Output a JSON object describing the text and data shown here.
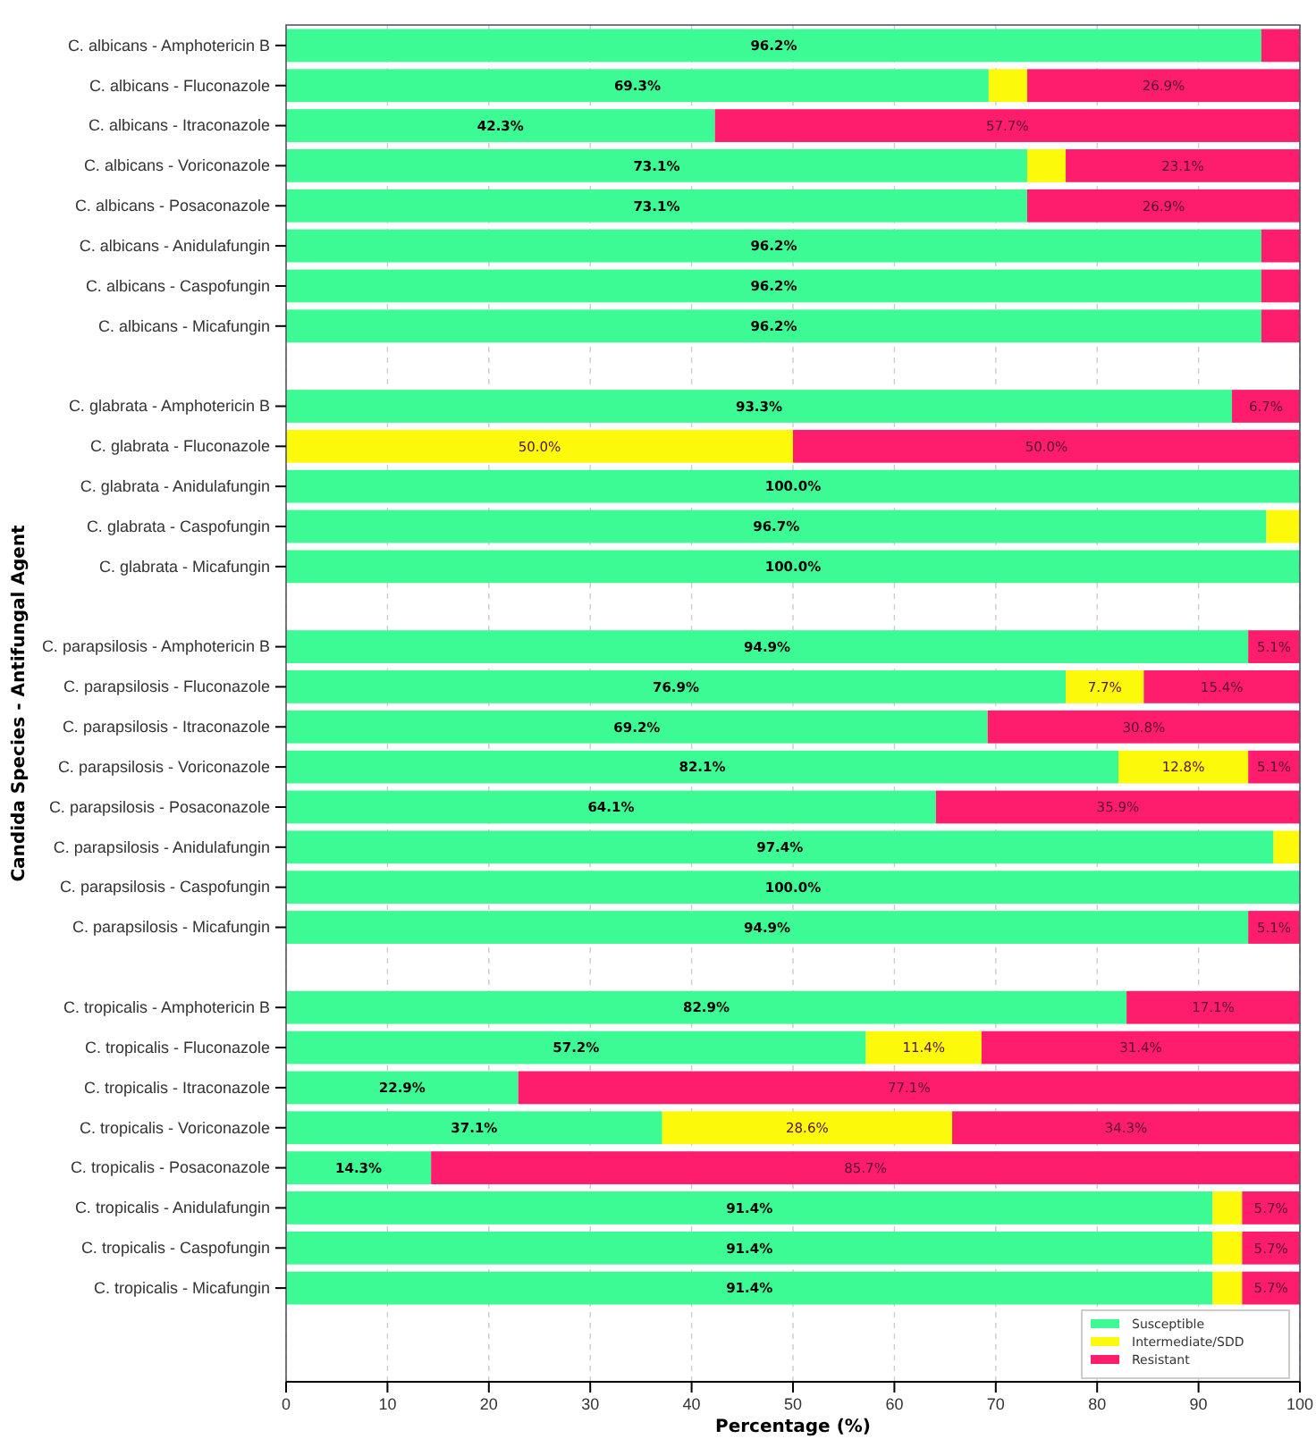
{
  "chart_data": {
    "type": "bar",
    "orientation": "horizontal",
    "stacked": true,
    "xlabel": "Percentage (%)",
    "ylabel": "Candida Species - Antifungal Agent",
    "categories": [
      "C. albicans - Amphotericin B",
      "C. albicans - Fluconazole",
      "C. albicans - Itraconazole",
      "C. albicans - Voriconazole",
      "C. albicans - Posaconazole",
      "C. albicans - Anidulafungin",
      "C. albicans - Caspofungin",
      "C. albicans - Micafungin",
      null,
      "C. glabrata - Amphotericin B",
      "C. glabrata - Fluconazole",
      "C. glabrata - Anidulafungin",
      "C. glabrata - Caspofungin",
      "C. glabrata - Micafungin",
      null,
      "C. parapsilosis - Amphotericin B",
      "C. parapsilosis - Fluconazole",
      "C. parapsilosis - Itraconazole",
      "C. parapsilosis - Voriconazole",
      "C. parapsilosis - Posaconazole",
      "C. parapsilosis - Anidulafungin",
      "C. parapsilosis - Caspofungin",
      "C. parapsilosis - Micafungin",
      null,
      "C. tropicalis - Amphotericin B",
      "C. tropicalis - Fluconazole",
      "C. tropicalis - Itraconazole",
      "C. tropicalis - Voriconazole",
      "C. tropicalis - Posaconazole",
      "C. tropicalis - Anidulafungin",
      "C. tropicalis - Caspofungin",
      "C. tropicalis - Micafungin"
    ],
    "series": [
      {
        "name": "Susceptible",
        "color": "#3dfb94",
        "values": [
          96.2,
          69.3,
          42.3,
          73.1,
          73.1,
          96.2,
          96.2,
          96.2,
          null,
          93.3,
          0,
          100.0,
          96.7,
          100.0,
          null,
          94.9,
          76.9,
          69.2,
          82.1,
          64.1,
          97.4,
          100.0,
          94.9,
          null,
          82.9,
          57.2,
          22.9,
          37.1,
          14.3,
          91.4,
          91.4,
          91.4
        ],
        "value_labels": [
          "96.2%",
          "69.3%",
          "42.3%",
          "73.1%",
          "73.1%",
          "96.2%",
          "96.2%",
          "96.2%",
          null,
          "93.3%",
          null,
          "100.0%",
          "96.7%",
          "100.0%",
          null,
          "94.9%",
          "76.9%",
          "69.2%",
          "82.1%",
          "64.1%",
          "97.4%",
          "100.0%",
          "94.9%",
          null,
          "82.9%",
          "57.2%",
          "22.9%",
          "37.1%",
          "14.3%",
          "91.4%",
          "91.4%",
          "91.4%"
        ]
      },
      {
        "name": "Intermediate/SDD",
        "color": "#fdf90b",
        "values": [
          0,
          3.8,
          0,
          3.8,
          0,
          0,
          0,
          0,
          null,
          0,
          50.0,
          0,
          3.3,
          0,
          null,
          0,
          7.7,
          0,
          12.8,
          0,
          2.6,
          0,
          0,
          null,
          0,
          11.4,
          0,
          28.6,
          0,
          2.9,
          2.9,
          2.9
        ],
        "value_labels": [
          null,
          null,
          null,
          null,
          null,
          null,
          null,
          null,
          null,
          null,
          "50.0%",
          null,
          null,
          null,
          null,
          null,
          "7.7%",
          null,
          "12.8%",
          null,
          null,
          null,
          null,
          null,
          null,
          "11.4%",
          null,
          "28.6%",
          null,
          null,
          null,
          null
        ]
      },
      {
        "name": "Resistant",
        "color": "#fe1c6c",
        "values": [
          3.8,
          26.9,
          57.7,
          23.1,
          26.9,
          3.8,
          3.8,
          3.8,
          null,
          6.7,
          50.0,
          0,
          0,
          0,
          null,
          5.1,
          15.4,
          30.8,
          5.1,
          35.9,
          0,
          0,
          5.1,
          null,
          17.1,
          31.4,
          77.1,
          34.3,
          85.7,
          5.7,
          5.7,
          5.7
        ],
        "value_labels": [
          null,
          "26.9%",
          "57.7%",
          "23.1%",
          "26.9%",
          null,
          null,
          null,
          null,
          "6.7%",
          "50.0%",
          null,
          null,
          null,
          null,
          "5.1%",
          "15.4%",
          "30.8%",
          "5.1%",
          "35.9%",
          null,
          null,
          "5.1%",
          null,
          "17.1%",
          "31.4%",
          "77.1%",
          "34.3%",
          "85.7%",
          "5.7%",
          "5.7%",
          "5.7%"
        ]
      }
    ],
    "xlim": [
      0,
      100
    ],
    "xticks": [
      0,
      10,
      20,
      30,
      40,
      50,
      60,
      70,
      80,
      90,
      100
    ],
    "grid": "x",
    "legend": "bottom right"
  }
}
